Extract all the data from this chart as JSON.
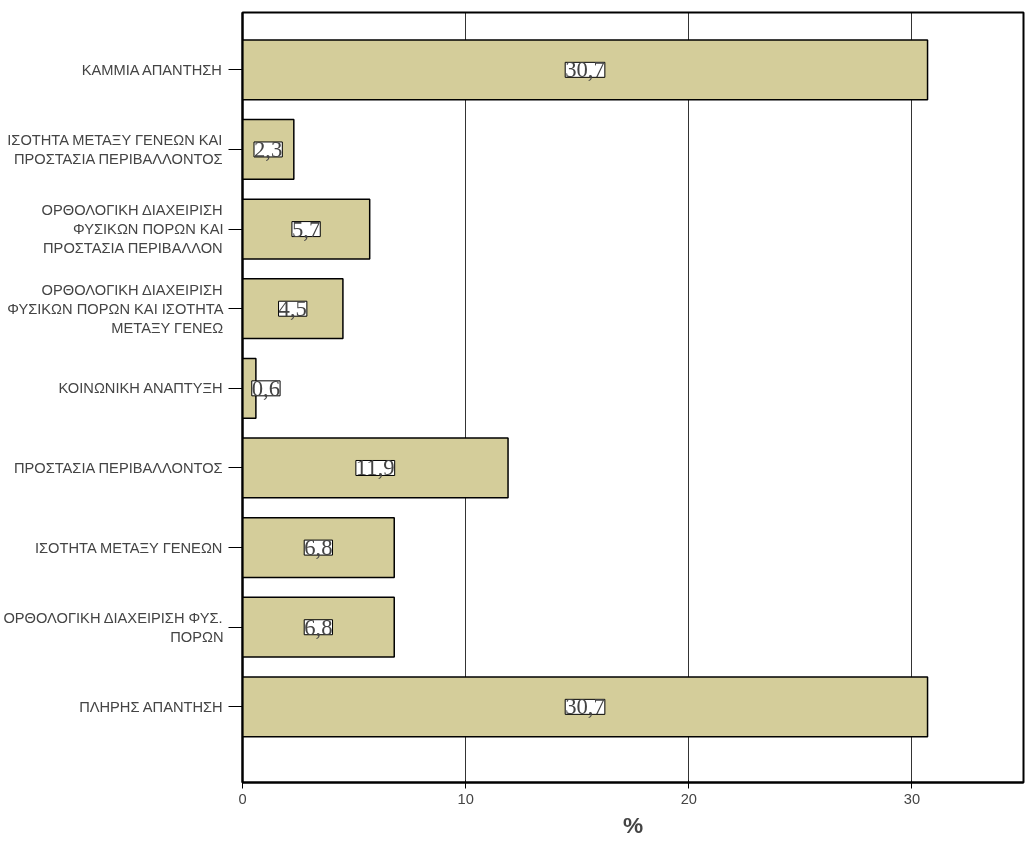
{
  "chart_data": {
    "type": "bar",
    "orientation": "horizontal",
    "xlabel": "%",
    "categories": [
      "ΚΑΜΜΙΑ ΑΠΑΝΤΗΣΗ",
      "ΙΣΟΤΗΤΑ ΜΕΤΑΞΥ ΓΕΝΕΩΝ ΚΑΙ\nΠΡΟΣΤΑΣΙΑ ΠΕΡΙΒΑΛΛΟΝΤΟΣ",
      "ΟΡΘΟΛΟΓΙΚΗ ΔΙΑΧΕΙΡΙΣΗ\nΦΥΣΙΚΩΝ ΠΟΡΩΝ ΚΑΙ\nΠΡΟΣΤΑΣΙΑ ΠΕΡΙΒΑΛΛΟΝ",
      "ΟΡΘΟΛΟΓΙΚΗ ΔΙΑΧΕΙΡΙΣΗ\nΦΥΣΙΚΩΝ ΠΟΡΩΝ ΚΑΙ ΙΣΟΤΗΤΑ\nΜΕΤΑΞΥ ΓΕΝΕΩ",
      "ΚΟΙΝΩΝΙΚΗ ΑΝΑΠΤΥΞΗ",
      "ΠΡΟΣΤΑΣΙΑ ΠΕΡΙΒΑΛΛΟΝΤΟΣ",
      "ΙΣΟΤΗΤΑ ΜΕΤΑΞΥ ΓΕΝΕΩΝ",
      "ΟΡΘΟΛΟΓΙΚΗ ΔΙΑΧΕΙΡΙΣΗ ΦΥΣ.\nΠΟΡΩΝ",
      "ΠΛΗΡΗΣ ΑΠΑΝΤΗΣΗ"
    ],
    "values": [
      30.7,
      2.3,
      5.7,
      4.5,
      0.6,
      11.9,
      6.8,
      6.8,
      30.7
    ],
    "value_labels": [
      "30,7",
      "2,3",
      "5,7",
      "4,5",
      "0,6",
      "11,9",
      "6,8",
      "6,8",
      "30,7"
    ],
    "color": "#d4cd9a",
    "xlim": [
      0,
      35
    ],
    "xticks": [
      0,
      10,
      20,
      30
    ],
    "grid": "x"
  }
}
